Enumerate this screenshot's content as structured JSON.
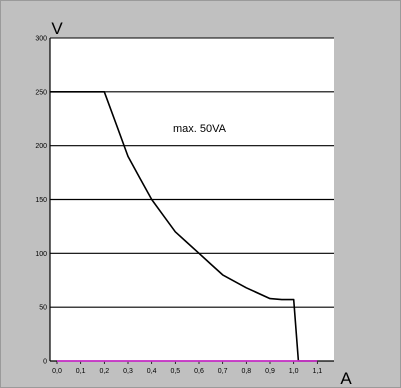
{
  "chart_data": {
    "type": "line",
    "title": "",
    "xlabel": "A",
    "ylabel": "V",
    "xlim": [
      0,
      1.2
    ],
    "ylim": [
      0,
      300
    ],
    "xticks": [
      0,
      0.1,
      0.2,
      0.3,
      0.4,
      0.5,
      0.6,
      0.7,
      0.8,
      0.9,
      1.0,
      1.1
    ],
    "xtick_labels": [
      "0,0",
      "0,1",
      "0,2",
      "0,3",
      "0,4",
      "0,5",
      "0,6",
      "0,7",
      "0,8",
      "0,9",
      "1,0",
      "1,1"
    ],
    "yticks": [
      0,
      50,
      100,
      150,
      200,
      250,
      300
    ],
    "ytick_labels": [
      "0",
      "50",
      "100",
      "150",
      "200",
      "250",
      "300"
    ],
    "grid": "horizontal",
    "annotation": "max. 50VA",
    "series": [
      {
        "color": "#000000",
        "x": [
          0.0,
          0.2,
          0.25,
          0.3,
          0.35,
          0.4,
          0.45,
          0.5,
          0.55,
          0.6,
          0.65,
          0.7,
          0.8,
          0.9,
          0.95,
          1.0,
          1.02,
          1.1
        ],
        "y": [
          250,
          250,
          220,
          190,
          170,
          150,
          135,
          120,
          110,
          100,
          90,
          80,
          68,
          58,
          57,
          57,
          0,
          0
        ]
      },
      {
        "color": "#cc33cc",
        "x": [
          0.0,
          1.1
        ],
        "y": [
          0,
          0
        ]
      }
    ]
  }
}
